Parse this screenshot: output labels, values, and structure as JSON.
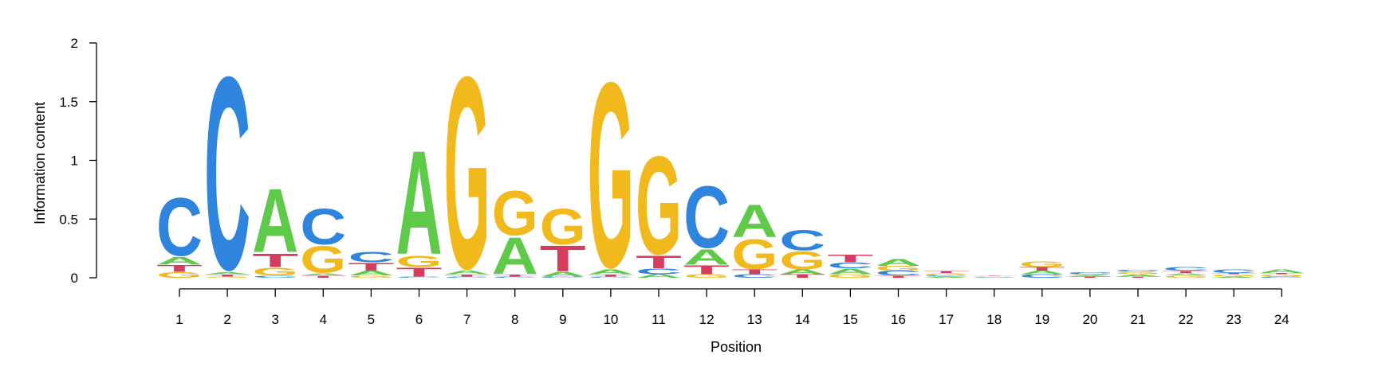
{
  "chart_data": {
    "type": "sequence-logo",
    "xlabel": "Position",
    "ylabel": "Information content",
    "ylim": [
      0,
      2
    ],
    "y_ticks": [
      "0",
      "0.5",
      "1",
      "1.5",
      "2"
    ],
    "y_tick_values": [
      0,
      0.5,
      1,
      1.5,
      2
    ],
    "colors": {
      "A": "#5fc94a",
      "C": "#2f85dd",
      "G": "#f2b91c",
      "T": "#d63c5e"
    },
    "positions": [
      {
        "label": "1",
        "stack": [
          [
            "G",
            0.05
          ],
          [
            "T",
            0.06
          ],
          [
            "A",
            0.07
          ],
          [
            "C",
            0.52
          ]
        ]
      },
      {
        "label": "2",
        "stack": [
          [
            "G",
            0.01
          ],
          [
            "T",
            0.02
          ],
          [
            "A",
            0.02
          ],
          [
            "C",
            1.73
          ]
        ]
      },
      {
        "label": "3",
        "stack": [
          [
            "C",
            0.02
          ],
          [
            "G",
            0.07
          ],
          [
            "T",
            0.12
          ],
          [
            "A",
            0.57
          ]
        ]
      },
      {
        "label": "4",
        "stack": [
          [
            "T",
            0.02
          ],
          [
            "A",
            0.02
          ],
          [
            "G",
            0.24
          ],
          [
            "C",
            0.32
          ]
        ]
      },
      {
        "label": "5",
        "stack": [
          [
            "G",
            0.02
          ],
          [
            "A",
            0.04
          ],
          [
            "T",
            0.07
          ],
          [
            "C",
            0.09
          ]
        ]
      },
      {
        "label": "6",
        "stack": [
          [
            "C",
            0.01
          ],
          [
            "T",
            0.08
          ],
          [
            "G",
            0.1
          ],
          [
            "A",
            0.93
          ]
        ]
      },
      {
        "label": "7",
        "stack": [
          [
            "C",
            0.01
          ],
          [
            "T",
            0.02
          ],
          [
            "A",
            0.03
          ],
          [
            "G",
            1.72
          ]
        ]
      },
      {
        "label": "8",
        "stack": [
          [
            "C",
            0.01
          ],
          [
            "T",
            0.02
          ],
          [
            "A",
            0.33
          ],
          [
            "G",
            0.4
          ]
        ]
      },
      {
        "label": "9",
        "stack": [
          [
            "C",
            0.01
          ],
          [
            "A",
            0.04
          ],
          [
            "T",
            0.23
          ],
          [
            "G",
            0.32
          ]
        ]
      },
      {
        "label": "10",
        "stack": [
          [
            "C",
            0.01
          ],
          [
            "T",
            0.02
          ],
          [
            "A",
            0.04
          ],
          [
            "G",
            1.66
          ]
        ]
      },
      {
        "label": "11",
        "stack": [
          [
            "A",
            0.03
          ],
          [
            "C",
            0.05
          ],
          [
            "T",
            0.11
          ],
          [
            "G",
            0.88
          ]
        ]
      },
      {
        "label": "12",
        "stack": [
          [
            "G",
            0.03
          ],
          [
            "T",
            0.08
          ],
          [
            "A",
            0.14
          ],
          [
            "C",
            0.55
          ]
        ]
      },
      {
        "label": "13",
        "stack": [
          [
            "C",
            0.03
          ],
          [
            "T",
            0.04
          ],
          [
            "G",
            0.27
          ],
          [
            "A",
            0.29
          ]
        ]
      },
      {
        "label": "14",
        "stack": [
          [
            "T",
            0.03
          ],
          [
            "A",
            0.04
          ],
          [
            "G",
            0.16
          ],
          [
            "C",
            0.18
          ]
        ]
      },
      {
        "label": "15",
        "stack": [
          [
            "G",
            0.03
          ],
          [
            "A",
            0.05
          ],
          [
            "C",
            0.05
          ],
          [
            "T",
            0.07
          ]
        ]
      },
      {
        "label": "16",
        "stack": [
          [
            "T",
            0.02
          ],
          [
            "C",
            0.04
          ],
          [
            "G",
            0.04
          ],
          [
            "A",
            0.06
          ]
        ]
      },
      {
        "label": "17",
        "stack": [
          [
            "A",
            0.01
          ],
          [
            "C",
            0.01
          ],
          [
            "G",
            0.02
          ],
          [
            "T",
            0.02
          ]
        ]
      },
      {
        "label": "18",
        "stack": [
          [
            "A",
            0.005
          ],
          [
            "C",
            0.005
          ],
          [
            "G",
            0.005
          ],
          [
            "T",
            0.005
          ]
        ]
      },
      {
        "label": "19",
        "stack": [
          [
            "C",
            0.03
          ],
          [
            "A",
            0.03
          ],
          [
            "T",
            0.03
          ],
          [
            "G",
            0.05
          ]
        ]
      },
      {
        "label": "20",
        "stack": [
          [
            "T",
            0.01
          ],
          [
            "A",
            0.01
          ],
          [
            "G",
            0.01
          ],
          [
            "C",
            0.02
          ]
        ]
      },
      {
        "label": "21",
        "stack": [
          [
            "T",
            0.01
          ],
          [
            "A",
            0.02
          ],
          [
            "G",
            0.02
          ],
          [
            "C",
            0.02
          ]
        ]
      },
      {
        "label": "22",
        "stack": [
          [
            "G",
            0.02
          ],
          [
            "A",
            0.02
          ],
          [
            "T",
            0.02
          ],
          [
            "C",
            0.03
          ]
        ]
      },
      {
        "label": "23",
        "stack": [
          [
            "A",
            0.01
          ],
          [
            "G",
            0.02
          ],
          [
            "T",
            0.01
          ],
          [
            "C",
            0.03
          ]
        ]
      },
      {
        "label": "24",
        "stack": [
          [
            "C",
            0.01
          ],
          [
            "G",
            0.02
          ],
          [
            "T",
            0.01
          ],
          [
            "A",
            0.03
          ]
        ]
      }
    ]
  }
}
